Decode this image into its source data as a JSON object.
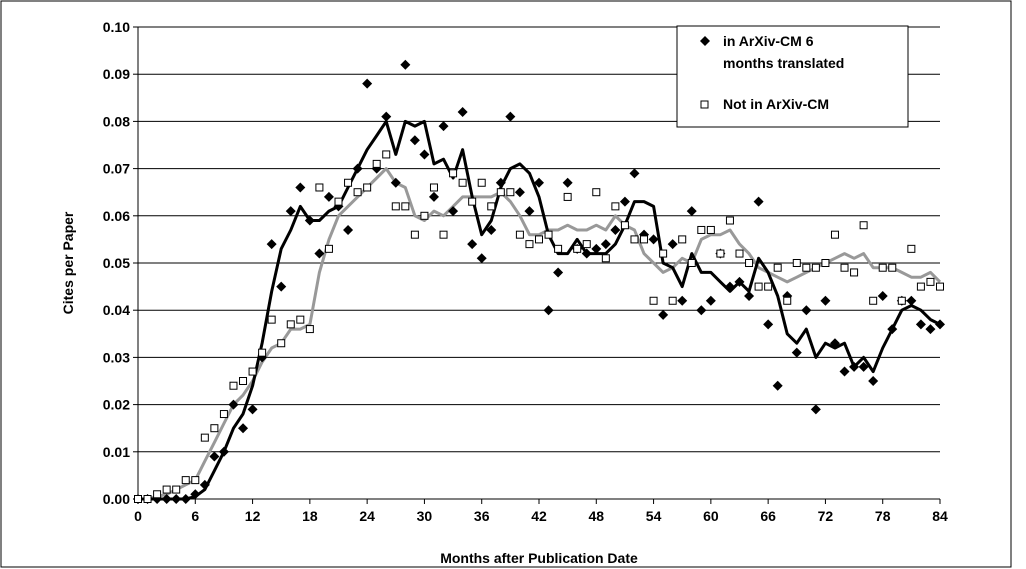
{
  "chart_data": {
    "type": "scatter",
    "xlabel": "Months after Publication Date",
    "ylabel": "Cites per Paper",
    "xlim": [
      0,
      84
    ],
    "ylim": [
      0,
      0.1
    ],
    "x_ticks": [
      "0",
      "6",
      "12",
      "18",
      "24",
      "30",
      "36",
      "42",
      "48",
      "54",
      "60",
      "66",
      "72",
      "78",
      "84"
    ],
    "y_ticks": [
      "0.00",
      "0.01",
      "0.02",
      "0.03",
      "0.04",
      "0.05",
      "0.06",
      "0.07",
      "0.08",
      "0.09",
      "0.10"
    ],
    "grid": "horizontal",
    "legend_position": "top-right",
    "legend": [
      {
        "label": "in ArXiv-CM 6",
        "label2": "months translated",
        "marker": "diamond"
      },
      {
        "label": "Not in ArXiv-CM",
        "label2": "",
        "marker": "square"
      }
    ],
    "series": [
      {
        "name": "in ArXiv-CM 6 months translated",
        "marker": "diamond",
        "color": "#000000",
        "x": [
          0,
          1,
          2,
          3,
          4,
          5,
          6,
          7,
          8,
          9,
          10,
          11,
          12,
          13,
          14,
          15,
          16,
          17,
          18,
          19,
          20,
          21,
          22,
          23,
          24,
          25,
          26,
          27,
          28,
          29,
          30,
          31,
          32,
          33,
          34,
          35,
          36,
          37,
          38,
          39,
          40,
          41,
          42,
          43,
          44,
          45,
          46,
          47,
          48,
          49,
          50,
          51,
          52,
          53,
          54,
          55,
          56,
          57,
          58,
          59,
          60,
          61,
          62,
          63,
          64,
          65,
          66,
          67,
          68,
          69,
          70,
          71,
          72,
          73,
          74,
          75,
          76,
          77,
          78,
          79,
          80,
          81,
          82,
          83,
          84
        ],
        "y": [
          0.0,
          0.0,
          0.0,
          0.0,
          0.0,
          0.0,
          0.001,
          0.003,
          0.009,
          0.01,
          0.02,
          0.015,
          0.019,
          0.03,
          0.054,
          0.045,
          0.061,
          0.066,
          0.059,
          0.052,
          0.064,
          0.062,
          0.057,
          0.07,
          0.088,
          0.07,
          0.081,
          0.067,
          0.092,
          0.076,
          0.073,
          0.064,
          0.079,
          0.061,
          0.082,
          0.054,
          0.051,
          0.057,
          0.067,
          0.081,
          0.065,
          0.061,
          0.067,
          0.04,
          0.048,
          0.067,
          0.053,
          0.052,
          0.053,
          0.054,
          0.057,
          0.063,
          0.069,
          0.056,
          0.055,
          0.039,
          0.054,
          0.042,
          0.061,
          0.04,
          0.042,
          0.052,
          0.045,
          0.046,
          0.043,
          0.063,
          0.037,
          0.024,
          0.043,
          0.031,
          0.04,
          0.019,
          0.042,
          0.033,
          0.027,
          0.028,
          0.028,
          0.025,
          0.043,
          0.036,
          0.042,
          0.042,
          0.037,
          0.036,
          0.037
        ]
      },
      {
        "name": "Not in ArXiv-CM",
        "marker": "square",
        "color": "#000000",
        "x": [
          0,
          1,
          2,
          3,
          4,
          5,
          6,
          7,
          8,
          9,
          10,
          11,
          12,
          13,
          14,
          15,
          16,
          17,
          18,
          19,
          20,
          21,
          22,
          23,
          24,
          25,
          26,
          27,
          28,
          29,
          30,
          31,
          32,
          33,
          34,
          35,
          36,
          37,
          38,
          39,
          40,
          41,
          42,
          43,
          44,
          45,
          46,
          47,
          48,
          49,
          50,
          51,
          52,
          53,
          54,
          55,
          56,
          57,
          58,
          59,
          60,
          61,
          62,
          63,
          64,
          65,
          66,
          67,
          68,
          69,
          70,
          71,
          72,
          73,
          74,
          75,
          76,
          77,
          78,
          79,
          80,
          81,
          82,
          83,
          84
        ],
        "y": [
          0.0,
          0.0,
          0.001,
          0.002,
          0.002,
          0.004,
          0.004,
          0.013,
          0.015,
          0.018,
          0.024,
          0.025,
          0.027,
          0.031,
          0.038,
          0.033,
          0.037,
          0.038,
          0.036,
          0.066,
          0.053,
          0.063,
          0.067,
          0.065,
          0.066,
          0.071,
          0.073,
          0.062,
          0.062,
          0.056,
          0.06,
          0.066,
          0.056,
          0.069,
          0.067,
          0.063,
          0.067,
          0.062,
          0.065,
          0.065,
          0.056,
          0.054,
          0.055,
          0.056,
          0.053,
          0.064,
          0.053,
          0.054,
          0.065,
          0.051,
          0.062,
          0.058,
          0.055,
          0.055,
          0.042,
          0.052,
          0.042,
          0.055,
          0.05,
          0.057,
          0.057,
          0.052,
          0.059,
          0.052,
          0.05,
          0.045,
          0.045,
          0.049,
          0.042,
          0.05,
          0.049,
          0.049,
          0.05,
          0.056,
          0.049,
          0.048,
          0.058,
          0.042,
          0.049,
          0.049,
          0.042,
          0.053,
          0.045,
          0.046,
          0.045
        ]
      }
    ],
    "trend_lines": [
      {
        "series": "in ArXiv-CM 6 months translated",
        "color": "#000000",
        "x": [
          0,
          1,
          2,
          3,
          4,
          5,
          6,
          7,
          8,
          9,
          10,
          11,
          12,
          13,
          14,
          15,
          16,
          17,
          18,
          19,
          20,
          21,
          22,
          23,
          24,
          25,
          26,
          27,
          28,
          29,
          30,
          31,
          32,
          33,
          34,
          35,
          36,
          37,
          38,
          39,
          40,
          41,
          42,
          43,
          44,
          45,
          46,
          47,
          48,
          49,
          50,
          51,
          52,
          53,
          54,
          55,
          56,
          57,
          58,
          59,
          60,
          61,
          62,
          63,
          64,
          65,
          66,
          67,
          68,
          69,
          70,
          71,
          72,
          73,
          74,
          75,
          76,
          77,
          78,
          79,
          80,
          81,
          82,
          83,
          84
        ],
        "y": [
          0.0,
          0.0,
          0.0,
          0.0,
          0.0,
          0.0,
          0.0005,
          0.002,
          0.006,
          0.01,
          0.015,
          0.018,
          0.024,
          0.033,
          0.044,
          0.053,
          0.057,
          0.062,
          0.059,
          0.059,
          0.061,
          0.062,
          0.066,
          0.07,
          0.074,
          0.077,
          0.08,
          0.073,
          0.08,
          0.079,
          0.08,
          0.071,
          0.072,
          0.068,
          0.074,
          0.064,
          0.056,
          0.059,
          0.066,
          0.07,
          0.071,
          0.069,
          0.064,
          0.056,
          0.052,
          0.052,
          0.055,
          0.052,
          0.052,
          0.052,
          0.054,
          0.058,
          0.063,
          0.063,
          0.062,
          0.05,
          0.049,
          0.045,
          0.052,
          0.048,
          0.048,
          0.046,
          0.044,
          0.046,
          0.044,
          0.051,
          0.048,
          0.043,
          0.035,
          0.033,
          0.036,
          0.03,
          0.033,
          0.032,
          0.033,
          0.028,
          0.03,
          0.027,
          0.032,
          0.036,
          0.04,
          0.041,
          0.04,
          0.038,
          0.037
        ]
      },
      {
        "series": "Not in ArXiv-CM",
        "color": "#999999",
        "x": [
          0,
          1,
          2,
          3,
          4,
          5,
          6,
          7,
          8,
          9,
          10,
          11,
          12,
          13,
          14,
          15,
          16,
          17,
          18,
          19,
          20,
          21,
          22,
          23,
          24,
          25,
          26,
          27,
          28,
          29,
          30,
          31,
          32,
          33,
          34,
          35,
          36,
          37,
          38,
          39,
          40,
          41,
          42,
          43,
          44,
          45,
          46,
          47,
          48,
          49,
          50,
          51,
          52,
          53,
          54,
          55,
          56,
          57,
          58,
          59,
          60,
          61,
          62,
          63,
          64,
          65,
          66,
          67,
          68,
          69,
          70,
          71,
          72,
          73,
          74,
          75,
          76,
          77,
          78,
          79,
          80,
          81,
          82,
          83,
          84
        ],
        "y": [
          0.0,
          0.0,
          0.0005,
          0.001,
          0.002,
          0.003,
          0.004,
          0.008,
          0.012,
          0.016,
          0.02,
          0.022,
          0.025,
          0.029,
          0.032,
          0.033,
          0.036,
          0.036,
          0.037,
          0.048,
          0.055,
          0.06,
          0.062,
          0.064,
          0.066,
          0.068,
          0.07,
          0.067,
          0.066,
          0.06,
          0.059,
          0.061,
          0.06,
          0.062,
          0.064,
          0.064,
          0.064,
          0.064,
          0.065,
          0.063,
          0.06,
          0.056,
          0.056,
          0.057,
          0.057,
          0.058,
          0.057,
          0.057,
          0.058,
          0.057,
          0.06,
          0.058,
          0.057,
          0.052,
          0.05,
          0.048,
          0.049,
          0.051,
          0.05,
          0.055,
          0.056,
          0.056,
          0.057,
          0.054,
          0.052,
          0.049,
          0.048,
          0.047,
          0.046,
          0.047,
          0.048,
          0.049,
          0.05,
          0.051,
          0.052,
          0.051,
          0.052,
          0.049,
          0.049,
          0.049,
          0.048,
          0.047,
          0.047,
          0.048,
          0.046
        ]
      }
    ]
  }
}
